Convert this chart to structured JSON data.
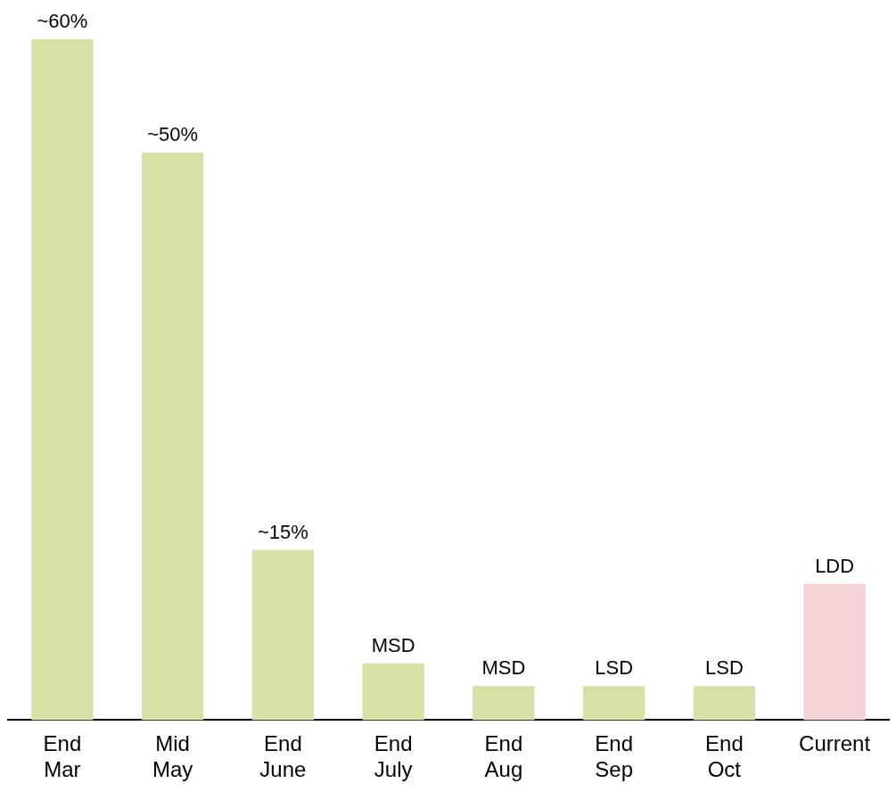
{
  "chart_data": {
    "type": "bar",
    "tick_labels": "x",
    "categories": [
      "End Mar",
      "Mid May",
      "End June",
      "End July",
      "End Aug",
      "End Sep",
      "End Oct",
      "Current"
    ],
    "values": [
      60,
      50,
      15,
      5,
      3,
      3,
      3,
      12
    ],
    "colors": [
      "#d9e0a5",
      "#d9e0a5",
      "#d9e0a5",
      "#d9e0a5",
      "#d9e0a5",
      "#d9e0a5",
      "#d9e0a5",
      "#f4d3d7"
    ],
    "value_labels": [
      "~60%",
      "~50%",
      "~15%",
      "MSD",
      "MSD",
      "LSD",
      "LSD",
      "LDD"
    ],
    "grid": false,
    "legend": false
  }
}
